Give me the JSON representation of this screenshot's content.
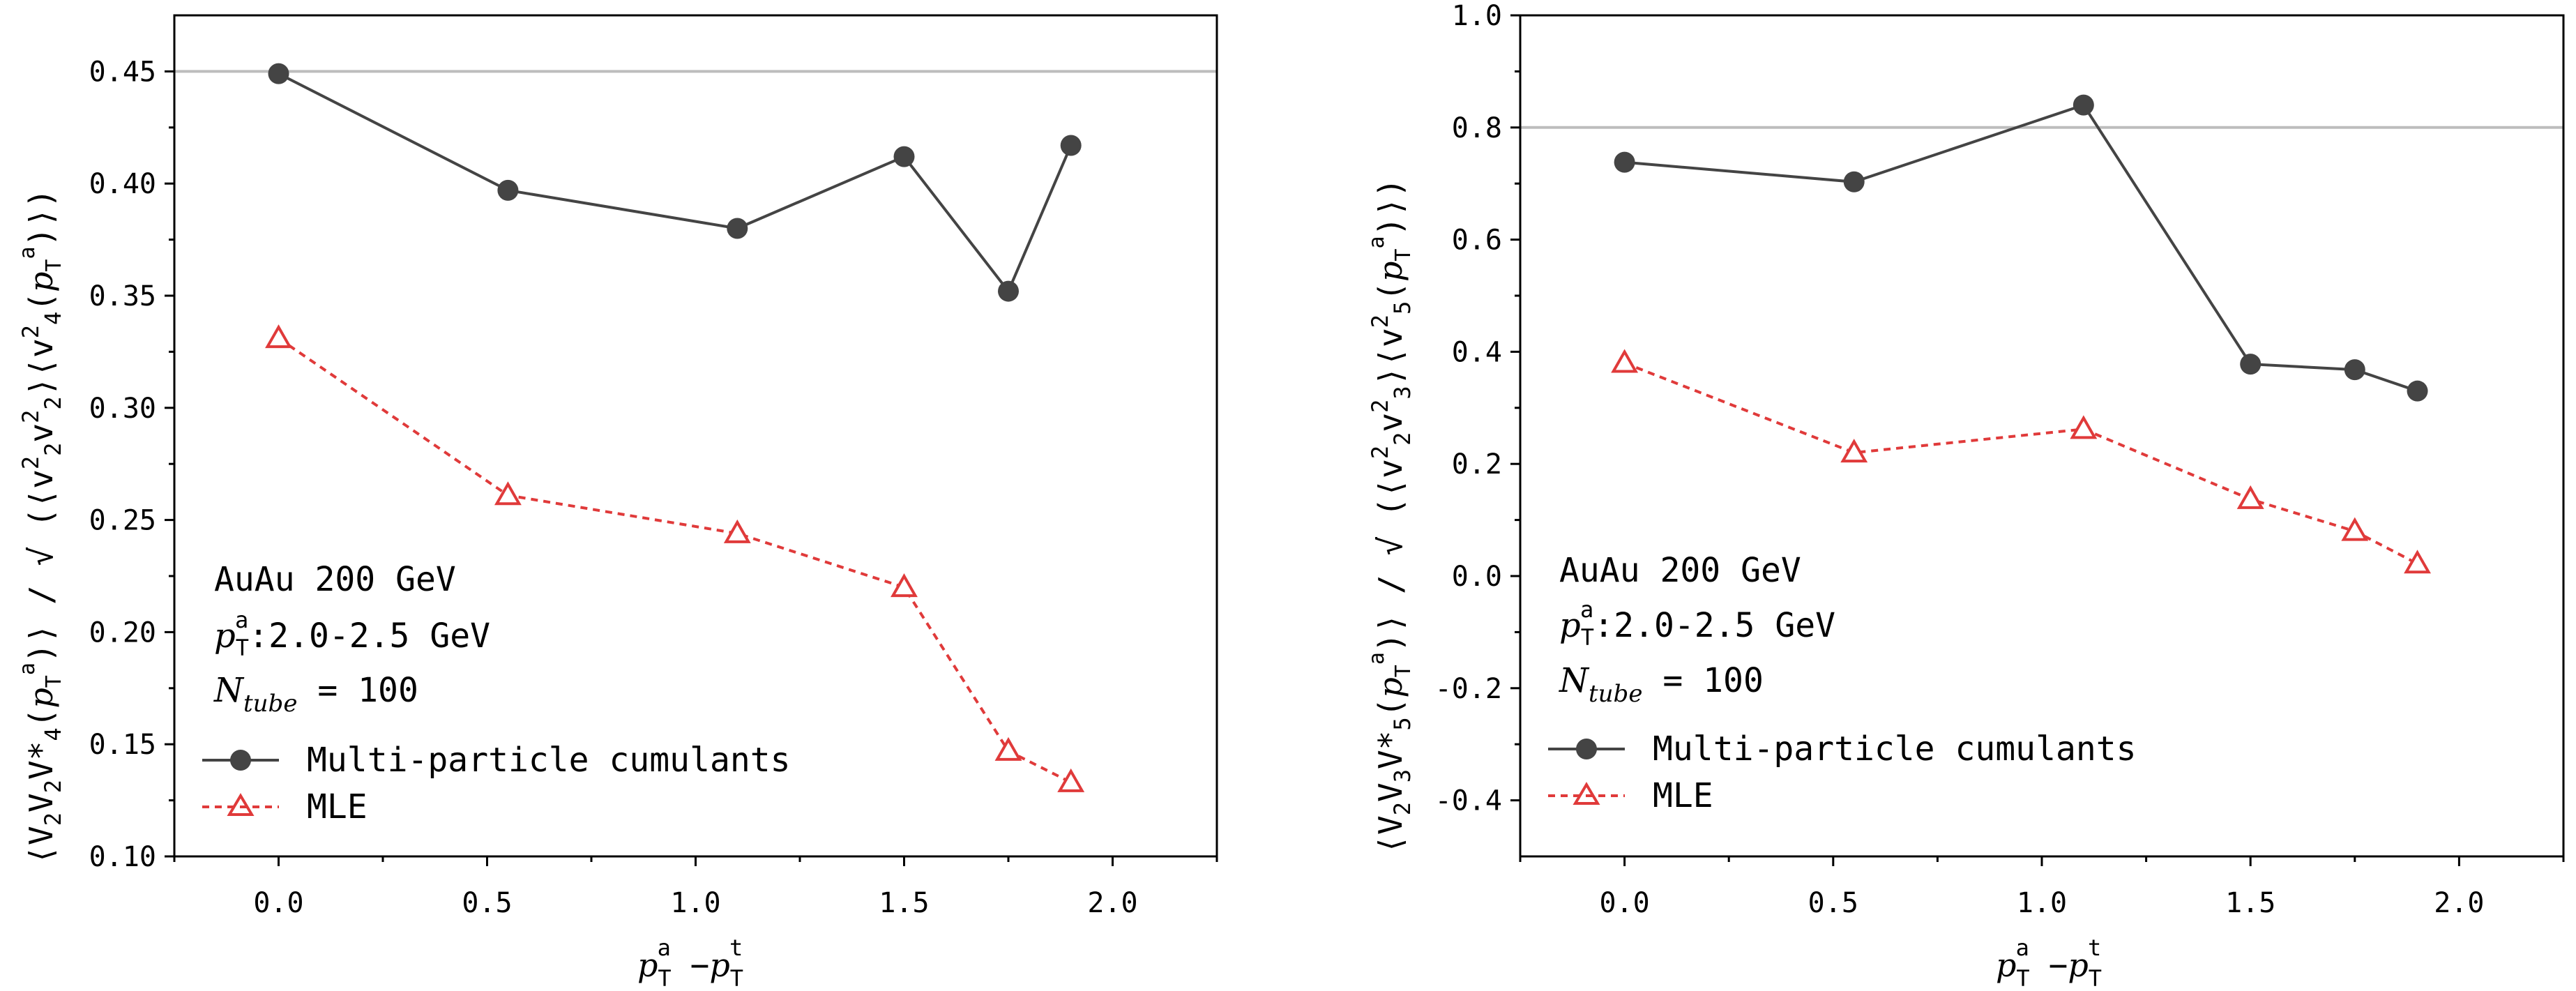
{
  "chart_data": [
    {
      "type": "line",
      "ylabel": "⟨V₂V₂V*₄(pTa)⟩/√(⟨v²₂v²₂⟩⟨v²₄(pTa)⟩)",
      "xlabel": "pTa − pTt",
      "xlim": [
        -0.25,
        2.25
      ],
      "ylim": [
        0.1,
        0.475
      ],
      "xticks": [
        "0.0",
        "0.5",
        "1.0",
        "1.5",
        "2.0"
      ],
      "yticks": [
        "0.10",
        "0.15",
        "0.20",
        "0.25",
        "0.30",
        "0.35",
        "0.40",
        "0.45"
      ],
      "hline": 0.45,
      "x": [
        0.0,
        0.55,
        1.1,
        1.5,
        1.75,
        1.9
      ],
      "series": [
        {
          "name": "Multi-particle cumulants",
          "color": "#444444",
          "marker": "circle",
          "dash": "solid",
          "values": [
            0.449,
            0.397,
            0.38,
            0.412,
            0.352,
            0.417
          ]
        },
        {
          "name": "MLE",
          "color": "#e03a3a",
          "marker": "triangle",
          "dash": "dashed",
          "values": [
            0.331,
            0.261,
            0.244,
            0.22,
            0.147,
            0.133
          ]
        }
      ],
      "annotations": [
        "AuAu 200 GeV",
        "pTa:2.0-2.5 GeV",
        "Ntube = 100"
      ]
    },
    {
      "type": "line",
      "ylabel": "⟨V₂V₃V*₅(pTa)⟩/√(⟨v²₂v²₃⟩⟨v²₅(pTa)⟩)",
      "xlabel": "pTa − pTt",
      "xlim": [
        -0.25,
        2.25
      ],
      "ylim": [
        -0.5,
        1.0
      ],
      "xticks": [
        "0.0",
        "0.5",
        "1.0",
        "1.5",
        "2.0"
      ],
      "yticks": [
        "-0.4",
        "-0.2",
        "0.0",
        "0.2",
        "0.4",
        "0.6",
        "0.8",
        "1.0"
      ],
      "hline": 0.8,
      "x": [
        0.0,
        0.55,
        1.1,
        1.5,
        1.75,
        1.9
      ],
      "series": [
        {
          "name": "Multi-particle cumulants",
          "color": "#444444",
          "marker": "circle",
          "dash": "solid",
          "values": [
            0.738,
            0.703,
            0.84,
            0.378,
            0.368,
            0.33
          ]
        },
        {
          "name": "MLE",
          "color": "#e03a3a",
          "marker": "triangle",
          "dash": "dashed",
          "values": [
            0.38,
            0.22,
            0.262,
            0.137,
            0.08,
            0.022
          ]
        }
      ],
      "annotations": [
        "AuAu 200 GeV",
        "pTa:2.0-2.5 GeV",
        "Ntube = 100"
      ]
    }
  ],
  "colors": {
    "cumulants": "#444444",
    "mle": "#e03a3a",
    "reference_line": "#bdbdbd"
  }
}
